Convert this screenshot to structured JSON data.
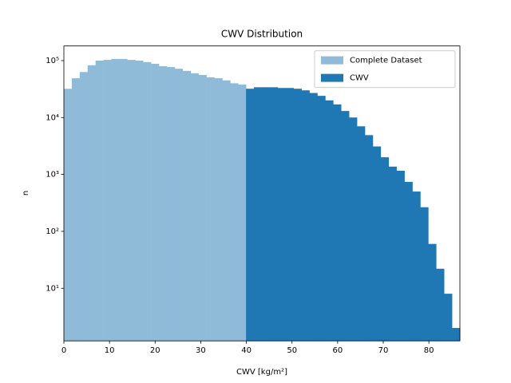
{
  "chart_data": {
    "type": "histogram",
    "title": "CWV Distribution",
    "x_label": "CWV [kg/m²]",
    "y_label": "n",
    "bins": [
      0,
      1.736,
      3.472,
      5.208,
      6.944,
      8.68,
      10.416,
      12.152,
      13.888,
      15.624,
      17.36,
      19.096,
      20.832,
      22.568,
      24.304,
      26.04,
      27.776,
      29.512,
      31.248,
      32.984,
      34.72,
      36.456,
      38.192,
      39.928,
      41.664,
      43.4,
      45.136,
      46.872,
      48.608,
      50.344,
      52.08,
      53.816,
      55.552,
      57.288,
      59.024,
      60.76,
      62.496,
      64.232,
      65.968,
      67.704,
      69.44,
      71.176,
      72.912,
      74.648,
      76.384,
      78.12,
      79.856,
      81.592,
      83.328,
      85.064,
      86.8
    ],
    "series": [
      {
        "name": "Complete Dataset",
        "color": "#8fbbd9",
        "values": [
          32000,
          49000,
          63000,
          83000,
          100000,
          103000,
          107000,
          107000,
          103000,
          100000,
          94000,
          88000,
          80000,
          77000,
          72000,
          66000,
          60000,
          56000,
          51000,
          49000,
          45000,
          40000,
          38000,
          32000,
          34000,
          34000,
          34000,
          33000,
          33000,
          32000,
          30000,
          27000,
          24000,
          20000,
          17000,
          13000,
          10000,
          7000,
          4900,
          3100,
          2000,
          1370,
          1160,
          740,
          500,
          265,
          60,
          22,
          8,
          2
        ]
      },
      {
        "name": "CWV",
        "color": "#1f77b4",
        "values": [
          null,
          null,
          null,
          null,
          null,
          null,
          null,
          null,
          null,
          null,
          null,
          null,
          null,
          null,
          null,
          null,
          null,
          null,
          null,
          null,
          null,
          null,
          null,
          32000,
          34000,
          34000,
          34000,
          33000,
          33000,
          32000,
          30000,
          27000,
          24000,
          20000,
          17000,
          13000,
          10000,
          7000,
          4900,
          3100,
          2000,
          1370,
          1160,
          740,
          500,
          265,
          60,
          22,
          8,
          2
        ]
      }
    ],
    "xlim": [
      0,
      86.8
    ],
    "xticks": [
      0,
      10,
      20,
      30,
      40,
      50,
      60,
      70,
      80
    ],
    "ylim": [
      1.19,
      181000
    ],
    "yscale": "log",
    "yticks": [
      {
        "value": 10,
        "label": "10¹"
      },
      {
        "value": 100,
        "label": "10²"
      },
      {
        "value": 1000,
        "label": "10³"
      },
      {
        "value": 10000,
        "label": "10⁴"
      },
      {
        "value": 100000,
        "label": "10⁵"
      }
    ],
    "legend": "upper right"
  }
}
